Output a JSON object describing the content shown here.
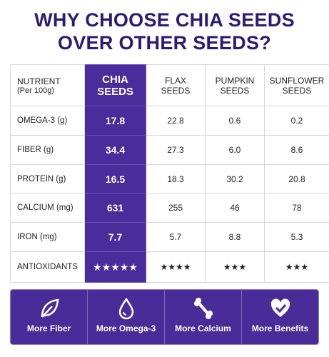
{
  "header": {
    "title_lines": [
      "WHY CHOOSE CHIA SEEDS",
      "OVER OTHER SEEDS?"
    ]
  },
  "table": {
    "columns": [
      {
        "lines": [
          "NUTRIENT",
          "(Per 100g)"
        ]
      },
      {
        "lines": [
          "CHIA",
          "SEEDS"
        ]
      },
      {
        "lines": [
          "FLAX",
          "SEEDS"
        ]
      },
      {
        "lines": [
          "PUMPKIN",
          "SEEDS"
        ]
      },
      {
        "lines": [
          "SUNFLOWER",
          "SEEDS"
        ]
      }
    ],
    "rows": [
      [
        "OMEGA-3 (g)",
        "17.8",
        "22.8",
        "0.6",
        "0.2"
      ],
      [
        "FIBER (g)",
        "34.4",
        "27.3",
        "6.0",
        "8.6"
      ],
      [
        "PROTEIN (g)",
        "16.5",
        "18.3",
        "30.2",
        "20.8"
      ],
      [
        "CALCIUM (mg)",
        "631",
        "255",
        "46",
        "78"
      ],
      [
        "IRON (mg)",
        "7.7",
        "5.7",
        "8.8",
        "5.3"
      ],
      [
        "ANTIOXIDANTS",
        "★★★★★",
        "★★★★",
        "★★★",
        "★★★"
      ]
    ]
  },
  "banner": {
    "items": [
      "More Fiber",
      "More Omega-3",
      "More Calcium",
      "More Benefits"
    ]
  }
}
